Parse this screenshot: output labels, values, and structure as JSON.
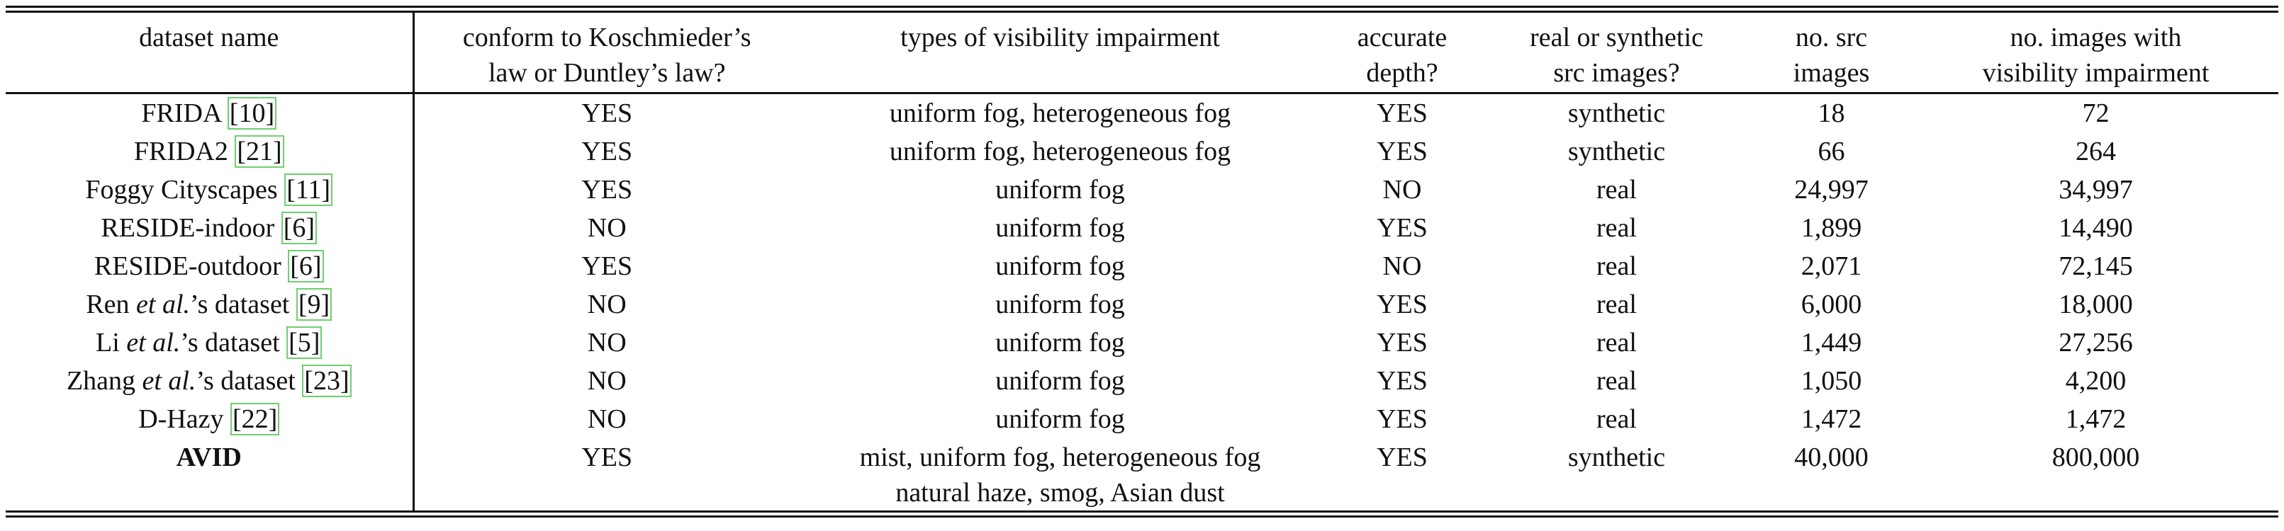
{
  "table": {
    "columns": [
      {
        "lines": [
          "dataset name"
        ]
      },
      {
        "lines": [
          "conform to Koschmieder’s",
          "law or Duntley’s law?"
        ]
      },
      {
        "lines": [
          "types of visibility impairment"
        ]
      },
      {
        "lines": [
          "accurate",
          "depth?"
        ]
      },
      {
        "lines": [
          "real or synthetic",
          "src images?"
        ]
      },
      {
        "lines": [
          "no. src",
          "images"
        ]
      },
      {
        "lines": [
          "no. images with",
          "visibility impairment"
        ]
      }
    ],
    "rows": [
      {
        "name": "FRIDA ",
        "name_em": "",
        "name_suffix": "",
        "ref": "[10]",
        "conform": "YES",
        "types": [
          "uniform fog, heterogeneous fog"
        ],
        "depth": "YES",
        "src": "synthetic",
        "n_src": "18",
        "n_imp": "72"
      },
      {
        "name": "FRIDA2 ",
        "name_em": "",
        "name_suffix": "",
        "ref": "[21]",
        "conform": "YES",
        "types": [
          "uniform fog, heterogeneous fog"
        ],
        "depth": "YES",
        "src": "synthetic",
        "n_src": "66",
        "n_imp": "264"
      },
      {
        "name": "Foggy Cityscapes ",
        "name_em": "",
        "name_suffix": "",
        "ref": "[11]",
        "conform": "YES",
        "types": [
          "uniform fog"
        ],
        "depth": "NO",
        "src": "real",
        "n_src": "24,997",
        "n_imp": "34,997"
      },
      {
        "name": "RESIDE-indoor ",
        "name_em": "",
        "name_suffix": "",
        "ref": "[6]",
        "conform": "NO",
        "types": [
          "uniform fog"
        ],
        "depth": "YES",
        "src": "real",
        "n_src": "1,899",
        "n_imp": "14,490"
      },
      {
        "name": "RESIDE-outdoor ",
        "name_em": "",
        "name_suffix": "",
        "ref": "[6]",
        "conform": "YES",
        "types": [
          "uniform fog"
        ],
        "depth": "NO",
        "src": "real",
        "n_src": "2,071",
        "n_imp": "72,145"
      },
      {
        "name": "Ren ",
        "name_em": "et al.",
        "name_suffix": "’s dataset ",
        "ref": "[9]",
        "conform": "NO",
        "types": [
          "uniform fog"
        ],
        "depth": "YES",
        "src": "real",
        "n_src": "6,000",
        "n_imp": "18,000"
      },
      {
        "name": "Li ",
        "name_em": "et al.",
        "name_suffix": "’s dataset ",
        "ref": "[5]",
        "conform": "NO",
        "types": [
          "uniform fog"
        ],
        "depth": "YES",
        "src": "real",
        "n_src": "1,449",
        "n_imp": "27,256"
      },
      {
        "name": "Zhang ",
        "name_em": "et al.",
        "name_suffix": "’s dataset ",
        "ref": "[23]",
        "conform": "NO",
        "types": [
          "uniform fog"
        ],
        "depth": "YES",
        "src": "real",
        "n_src": "1,050",
        "n_imp": "4,200"
      },
      {
        "name": "D-Hazy ",
        "name_em": "",
        "name_suffix": "",
        "ref": "[22]",
        "conform": "NO",
        "types": [
          "uniform fog"
        ],
        "depth": "YES",
        "src": "real",
        "n_src": "1,472",
        "n_imp": "1,472"
      },
      {
        "name": "AVID",
        "name_em": "",
        "name_suffix": "",
        "ref": "",
        "conform": "YES",
        "types": [
          "mist, uniform fog, heterogeneous fog",
          "natural haze, smog, Asian dust"
        ],
        "depth": "YES",
        "src": "synthetic",
        "n_src": "40,000",
        "n_imp": "800,000",
        "bold": true
      }
    ]
  }
}
